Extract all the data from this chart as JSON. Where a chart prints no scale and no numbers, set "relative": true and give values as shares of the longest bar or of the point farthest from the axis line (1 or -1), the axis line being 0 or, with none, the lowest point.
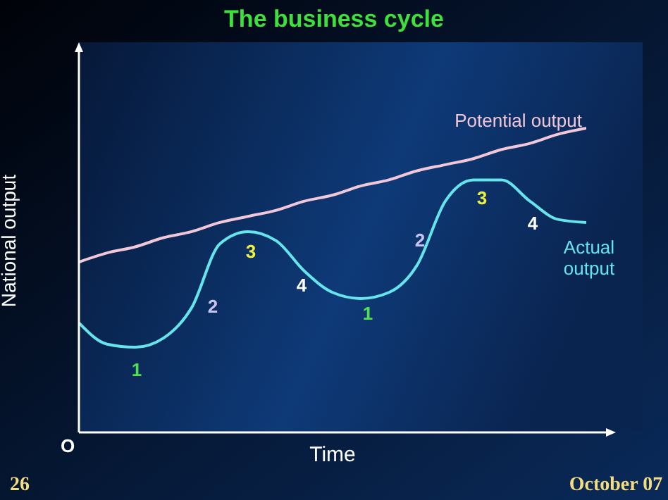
{
  "chart_data": {
    "type": "line",
    "relative": true,
    "title": "The business cycle",
    "xlabel": "Time",
    "ylabel": "National output",
    "categories": [
      null,
      null,
      null,
      null,
      null,
      null,
      null,
      null,
      null,
      null,
      null,
      null,
      null,
      null,
      null,
      null,
      null,
      null,
      null
    ],
    "series": [
      {
        "name": "Potential output",
        "color": "#f2c8d8",
        "values": [
          0.56,
          0.59,
          0.61,
          0.64,
          0.66,
          0.69,
          0.71,
          0.73,
          0.76,
          0.78,
          0.81,
          0.83,
          0.86,
          0.88,
          0.9,
          0.93,
          0.95,
          0.98,
          1
        ]
      },
      {
        "name": "Actual output",
        "color": "#66e4ec",
        "values": [
          0.36,
          0.29,
          0.28,
          0.31,
          0.41,
          0.62,
          0.66,
          0.63,
          0.53,
          0.46,
          0.44,
          0.46,
          0.55,
          0.76,
          0.83,
          0.83,
          0.76,
          0.7,
          0.69
        ]
      }
    ],
    "annotations": [
      "1",
      "2",
      "3",
      "4",
      "1",
      "2",
      "3",
      "4",
      "O",
      "26",
      "October 07"
    ],
    "marker": "none",
    "line_style": "solid"
  }
}
